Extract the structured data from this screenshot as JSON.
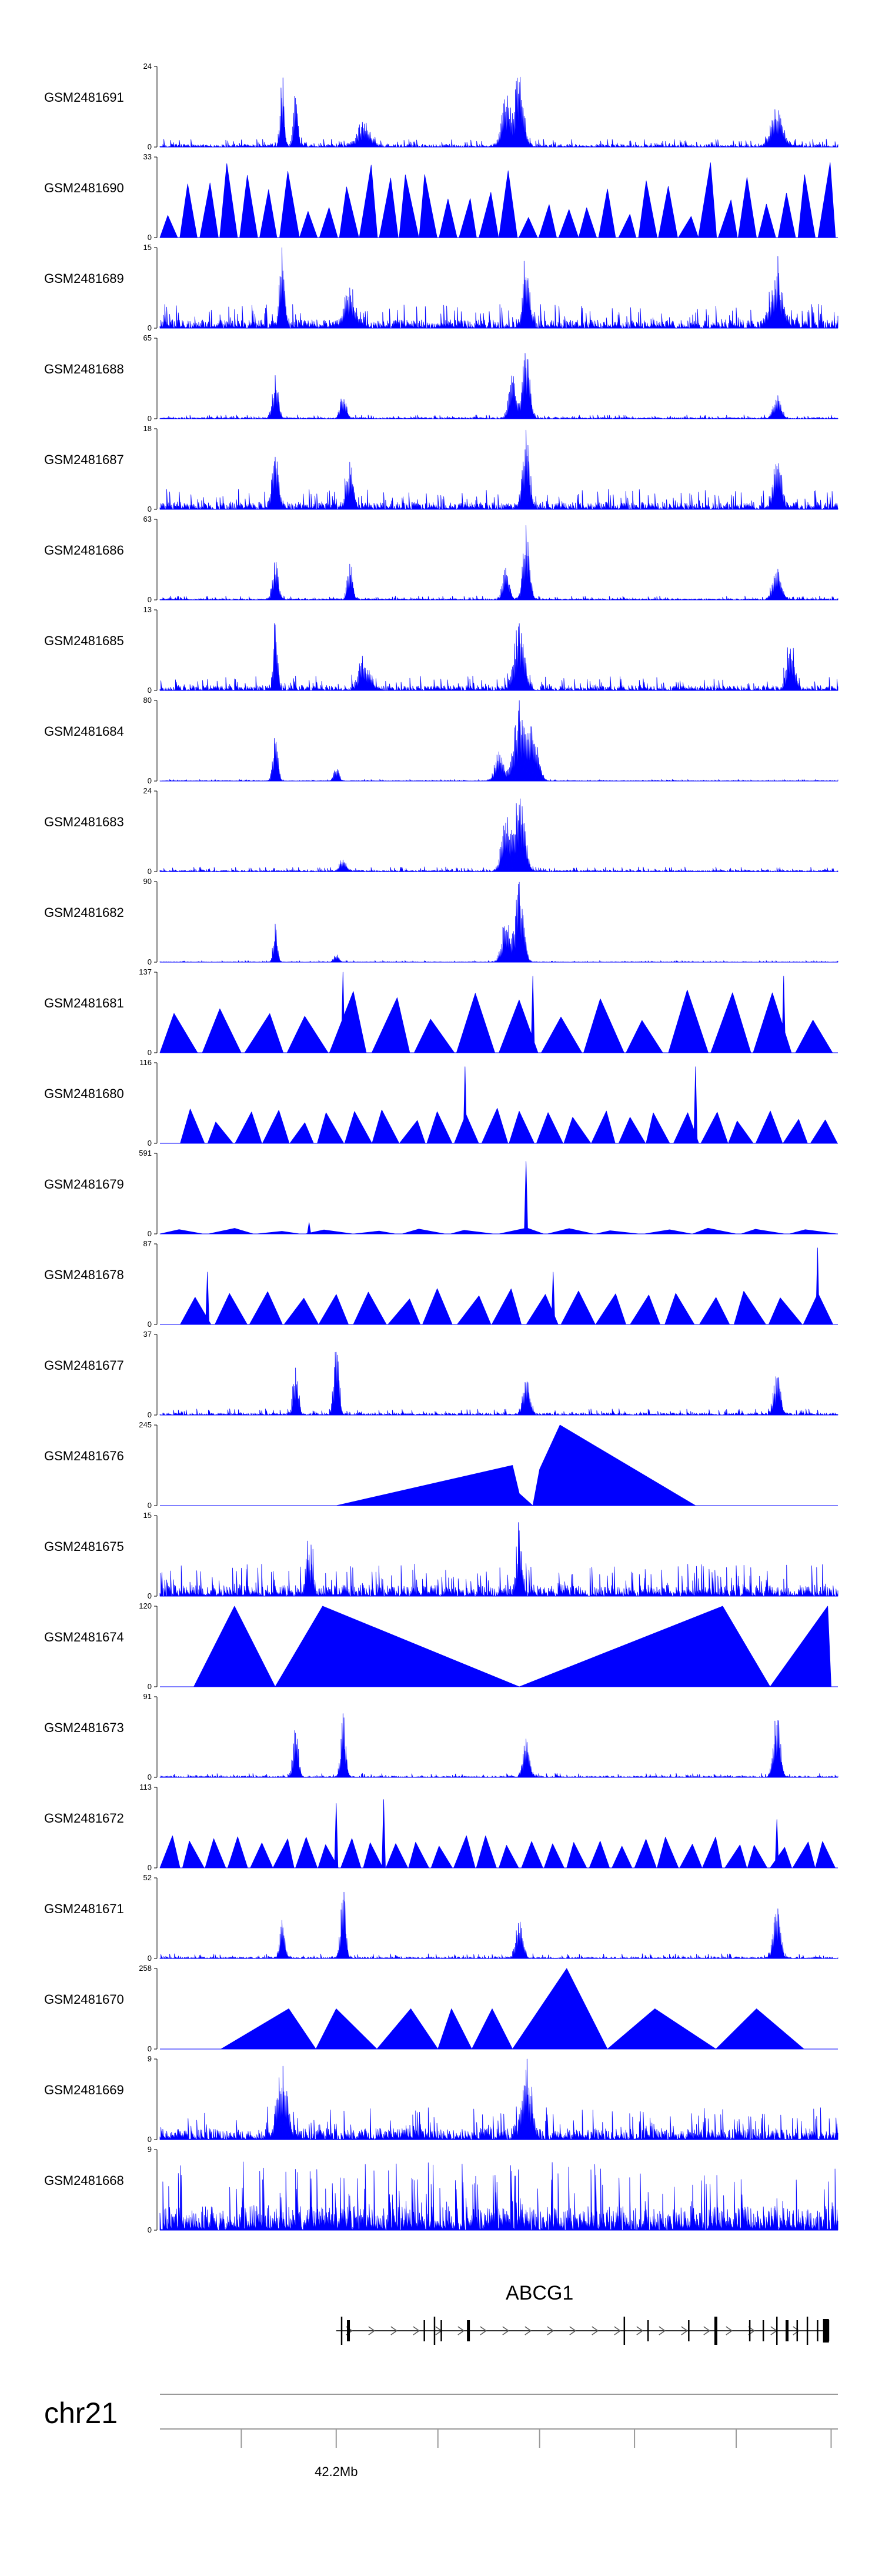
{
  "chart_data": {
    "type": "area",
    "title": "",
    "region": {
      "chromosome": "chr21",
      "start": 42180000,
      "end": 42252000
    },
    "accent_color": "#0000ff",
    "tracks": [
      {
        "name": "GSM2481691",
        "ymax": "24",
        "ymin": "0",
        "style": "dense",
        "seed": 11,
        "noise": 0.1,
        "peaks": [
          [
            0.18,
            0.22,
            0.9
          ],
          [
            0.2,
            0.28,
            0.7
          ],
          [
            0.53,
            0.52,
            1.0
          ],
          [
            0.51,
            0.56,
            0.6
          ],
          [
            0.91,
            0.72,
            0.5
          ],
          [
            0.3,
            0.8,
            0.3
          ]
        ]
      },
      {
        "name": "GSM2481690",
        "ymax": "33",
        "ymin": "0",
        "style": "triangles",
        "seed": 12,
        "count": 34,
        "hmin": 0.25,
        "hmax": 0.95
      },
      {
        "name": "GSM2481689",
        "ymax": "15",
        "ymin": "0",
        "style": "dense",
        "seed": 13,
        "noise": 0.3,
        "peaks": [
          [
            0.18,
            0.3,
            1.0
          ],
          [
            0.54,
            0.4,
            0.8
          ],
          [
            0.91,
            0.7,
            0.7
          ],
          [
            0.28,
            0.6,
            0.5
          ]
        ]
      },
      {
        "name": "GSM2481688",
        "ymax": "65",
        "ymin": "0",
        "style": "dense",
        "seed": 14,
        "noise": 0.05,
        "peaks": [
          [
            0.17,
            0.35,
            0.55
          ],
          [
            0.27,
            0.35,
            0.35
          ],
          [
            0.54,
            0.4,
            1.0
          ],
          [
            0.52,
            0.45,
            0.55
          ],
          [
            0.91,
            0.45,
            0.3
          ]
        ]
      },
      {
        "name": "GSM2481687",
        "ymax": "18",
        "ymin": "0",
        "style": "dense",
        "seed": 15,
        "noise": 0.25,
        "peaks": [
          [
            0.17,
            0.35,
            0.9
          ],
          [
            0.28,
            0.4,
            0.6
          ],
          [
            0.54,
            0.4,
            1.0
          ],
          [
            0.91,
            0.5,
            0.6
          ]
        ]
      },
      {
        "name": "GSM2481686",
        "ymax": "63",
        "ymin": "0",
        "style": "dense",
        "seed": 16,
        "noise": 0.05,
        "peaks": [
          [
            0.17,
            0.35,
            0.5
          ],
          [
            0.28,
            0.3,
            0.5
          ],
          [
            0.54,
            0.4,
            1.0
          ],
          [
            0.51,
            0.4,
            0.4
          ],
          [
            0.91,
            0.5,
            0.45
          ]
        ]
      },
      {
        "name": "GSM2481685",
        "ymax": "13",
        "ymin": "0",
        "style": "dense",
        "seed": 17,
        "noise": 0.18,
        "peaks": [
          [
            0.17,
            0.25,
            0.9
          ],
          [
            0.53,
            0.6,
            0.9
          ],
          [
            0.93,
            0.5,
            0.5
          ],
          [
            0.3,
            0.6,
            0.4
          ]
        ]
      },
      {
        "name": "GSM2481684",
        "ymax": "80",
        "ymin": "0",
        "style": "dense",
        "seed": 18,
        "noise": 0.02,
        "peaks": [
          [
            0.17,
            0.3,
            0.65
          ],
          [
            0.26,
            0.3,
            0.2
          ],
          [
            0.53,
            0.7,
            1.0
          ],
          [
            0.5,
            0.5,
            0.4
          ],
          [
            0.55,
            0.6,
            0.7
          ]
        ]
      },
      {
        "name": "GSM2481683",
        "ymax": "24",
        "ymin": "0",
        "style": "dense",
        "seed": 19,
        "noise": 0.06,
        "peaks": [
          [
            0.53,
            0.6,
            1.0
          ],
          [
            0.51,
            0.5,
            0.7
          ],
          [
            0.27,
            0.4,
            0.15
          ]
        ]
      },
      {
        "name": "GSM2481682",
        "ymax": "90",
        "ymin": "0",
        "style": "dense",
        "seed": 20,
        "noise": 0.02,
        "peaks": [
          [
            0.17,
            0.25,
            0.5
          ],
          [
            0.53,
            0.5,
            1.0
          ],
          [
            0.51,
            0.5,
            0.55
          ],
          [
            0.26,
            0.3,
            0.1
          ]
        ]
      },
      {
        "name": "GSM2481681",
        "ymax": "137",
        "ymin": "0",
        "style": "triangles",
        "seed": 21,
        "count": 16,
        "hmin": 0.4,
        "hmax": 0.85,
        "spikes": [
          [
            0.27,
            1.0
          ],
          [
            0.55,
            0.95
          ],
          [
            0.92,
            0.95
          ]
        ]
      },
      {
        "name": "GSM2481680",
        "ymax": "116",
        "ymin": "0",
        "style": "triangles",
        "seed": 22,
        "count": 24,
        "hmin": 0.25,
        "hmax": 0.45,
        "start": 0.03,
        "spikes": [
          [
            0.45,
            0.95
          ],
          [
            0.79,
            0.95
          ]
        ]
      },
      {
        "name": "GSM2481679",
        "ymax": "591",
        "ymin": "0",
        "style": "triangles",
        "seed": 23,
        "count": 14,
        "hmin": 0.02,
        "hmax": 0.08,
        "spikes": [
          [
            0.54,
            0.9
          ],
          [
            0.22,
            0.14
          ]
        ]
      },
      {
        "name": "GSM2481678",
        "ymax": "87",
        "ymin": "0",
        "style": "triangles",
        "seed": 24,
        "count": 19,
        "hmin": 0.3,
        "hmax": 0.45,
        "start": 0.03,
        "spikes": [
          [
            0.07,
            0.65
          ],
          [
            0.97,
            0.95
          ],
          [
            0.58,
            0.65
          ]
        ]
      },
      {
        "name": "GSM2481677",
        "ymax": "37",
        "ymin": "0",
        "style": "dense",
        "seed": 25,
        "noise": 0.08,
        "peaks": [
          [
            0.2,
            0.3,
            0.6
          ],
          [
            0.26,
            0.3,
            1.0
          ],
          [
            0.54,
            0.4,
            0.5
          ],
          [
            0.91,
            0.4,
            0.55
          ]
        ]
      },
      {
        "name": "GSM2481676",
        "ymax": "245",
        "ymin": "0",
        "style": "custom",
        "segments": [
          [
            0.26,
            0.0
          ],
          [
            0.52,
            0.5
          ],
          [
            0.53,
            0.15
          ],
          [
            0.55,
            0.0
          ],
          [
            0.56,
            0.45
          ],
          [
            0.59,
            1.0
          ],
          [
            0.79,
            0.0
          ]
        ]
      },
      {
        "name": "GSM2481675",
        "ymax": "15",
        "ymin": "0",
        "style": "dense",
        "seed": 26,
        "noise": 0.4,
        "peaks": [
          [
            0.53,
            0.3,
            0.9
          ],
          [
            0.22,
            0.4,
            0.6
          ]
        ]
      },
      {
        "name": "GSM2481674",
        "ymax": "120",
        "ymin": "0",
        "style": "custom",
        "segments": [
          [
            0.05,
            0.0
          ],
          [
            0.11,
            1.0
          ],
          [
            0.17,
            0.0
          ],
          [
            0.24,
            1.0
          ],
          [
            0.53,
            0.0
          ],
          [
            0.83,
            1.0
          ],
          [
            0.9,
            0.0
          ],
          [
            0.985,
            1.0
          ],
          [
            0.99,
            0.0
          ]
        ]
      },
      {
        "name": "GSM2481673",
        "ymax": "91",
        "ymin": "0",
        "style": "dense",
        "seed": 27,
        "noise": 0.05,
        "peaks": [
          [
            0.2,
            0.3,
            0.7
          ],
          [
            0.27,
            0.3,
            0.8
          ],
          [
            0.54,
            0.4,
            0.5
          ],
          [
            0.91,
            0.4,
            0.9
          ]
        ]
      },
      {
        "name": "GSM2481672",
        "ymax": "113",
        "ymin": "0",
        "style": "triangles",
        "seed": 28,
        "count": 30,
        "hmin": 0.25,
        "hmax": 0.4,
        "spikes": [
          [
            0.26,
            0.8
          ],
          [
            0.33,
            0.85
          ],
          [
            0.91,
            0.6
          ]
        ]
      },
      {
        "name": "GSM2481671",
        "ymax": "52",
        "ymin": "0",
        "style": "dense",
        "seed": 29,
        "noise": 0.06,
        "peaks": [
          [
            0.18,
            0.3,
            0.5
          ],
          [
            0.27,
            0.3,
            0.9
          ],
          [
            0.53,
            0.4,
            0.5
          ],
          [
            0.91,
            0.4,
            0.75
          ]
        ]
      },
      {
        "name": "GSM2481670",
        "ymax": "258",
        "ymin": "0",
        "style": "custom",
        "segments": [
          [
            0.09,
            0.0
          ],
          [
            0.19,
            0.5
          ],
          [
            0.23,
            0.0
          ],
          [
            0.26,
            0.5
          ],
          [
            0.32,
            0.0
          ],
          [
            0.37,
            0.5
          ],
          [
            0.41,
            0.0
          ],
          [
            0.43,
            0.5
          ],
          [
            0.46,
            0.0
          ],
          [
            0.49,
            0.5
          ],
          [
            0.52,
            0.0
          ],
          [
            0.56,
            0.5
          ],
          [
            0.6,
            1.0
          ],
          [
            0.66,
            0.0
          ],
          [
            0.73,
            0.5
          ],
          [
            0.82,
            0.0
          ],
          [
            0.88,
            0.5
          ],
          [
            0.95,
            0.0
          ]
        ]
      },
      {
        "name": "GSM2481669",
        "ymax": "9",
        "ymin": "0",
        "style": "dense",
        "seed": 30,
        "noise": 0.4,
        "peaks": [
          [
            0.18,
            0.6,
            0.9
          ],
          [
            0.54,
            0.6,
            0.8
          ]
        ]
      },
      {
        "name": "GSM2481668",
        "ymax": "9",
        "ymin": "0",
        "style": "dense",
        "seed": 31,
        "noise": 0.85,
        "peaks": []
      }
    ],
    "gene": {
      "name": "ABCG1",
      "start": 0.26,
      "end": 0.985,
      "strand": "+",
      "exons": [
        0.268,
        0.278,
        0.39,
        0.405,
        0.415,
        0.455,
        0.685,
        0.72,
        0.78,
        0.82,
        0.87,
        0.89,
        0.91,
        0.925,
        0.94,
        0.955,
        0.97,
        0.985
      ]
    },
    "xaxis": {
      "label": "chr21",
      "tick_positions": [
        0.12,
        0.26,
        0.41,
        0.56,
        0.7,
        0.85,
        0.99
      ],
      "tick_labels": [
        "",
        "42.2Mb",
        "",
        "",
        "",
        "",
        ""
      ]
    }
  }
}
